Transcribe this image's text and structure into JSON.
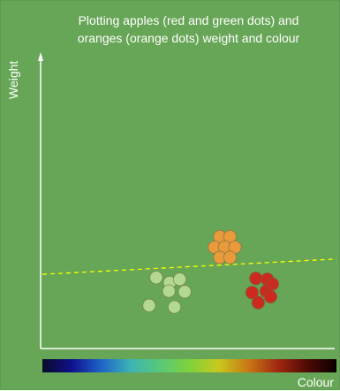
{
  "chart_data": {
    "type": "scatter",
    "title_lines": [
      "Plotting apples (red and green dots) and",
      "oranges (orange dots) weight and colour"
    ],
    "xlabel": "Colour",
    "ylabel": "Weight",
    "xlim": [
      0,
      1
    ],
    "ylim": [
      0,
      1
    ],
    "x_axis_colour_scale": [
      "#0a0a2a",
      "#10108c",
      "#1e64c8",
      "#3cb4b4",
      "#5ac878",
      "#7ed23c",
      "#c8c81e",
      "#c87814",
      "#a02810",
      "#500a05",
      "#0a0000"
    ],
    "series": [
      {
        "colour": "#e89a3c",
        "points": [
          [
            0.603,
            0.38
          ],
          [
            0.638,
            0.38
          ],
          [
            0.585,
            0.344
          ],
          [
            0.62,
            0.344
          ],
          [
            0.655,
            0.344
          ],
          [
            0.603,
            0.309
          ],
          [
            0.638,
            0.309
          ]
        ]
      },
      {
        "colour": "#b3d88f",
        "points": [
          [
            0.387,
            0.241
          ],
          [
            0.433,
            0.224
          ],
          [
            0.467,
            0.235
          ],
          [
            0.484,
            0.193
          ],
          [
            0.43,
            0.195
          ],
          [
            0.363,
            0.146
          ],
          [
            0.449,
            0.141
          ]
        ]
      },
      {
        "colour": "#cc2a1e",
        "points": [
          [
            0.726,
            0.238
          ],
          [
            0.765,
            0.235
          ],
          [
            0.782,
            0.219
          ],
          [
            0.761,
            0.195
          ],
          [
            0.713,
            0.19
          ],
          [
            0.776,
            0.176
          ],
          [
            0.734,
            0.156
          ]
        ]
      }
    ],
    "boundary": {
      "style": "dashed",
      "colour": "#ffff00",
      "from": [
        0,
        0.252
      ],
      "to": [
        1,
        0.304
      ]
    },
    "grid": false,
    "legend": "none"
  }
}
